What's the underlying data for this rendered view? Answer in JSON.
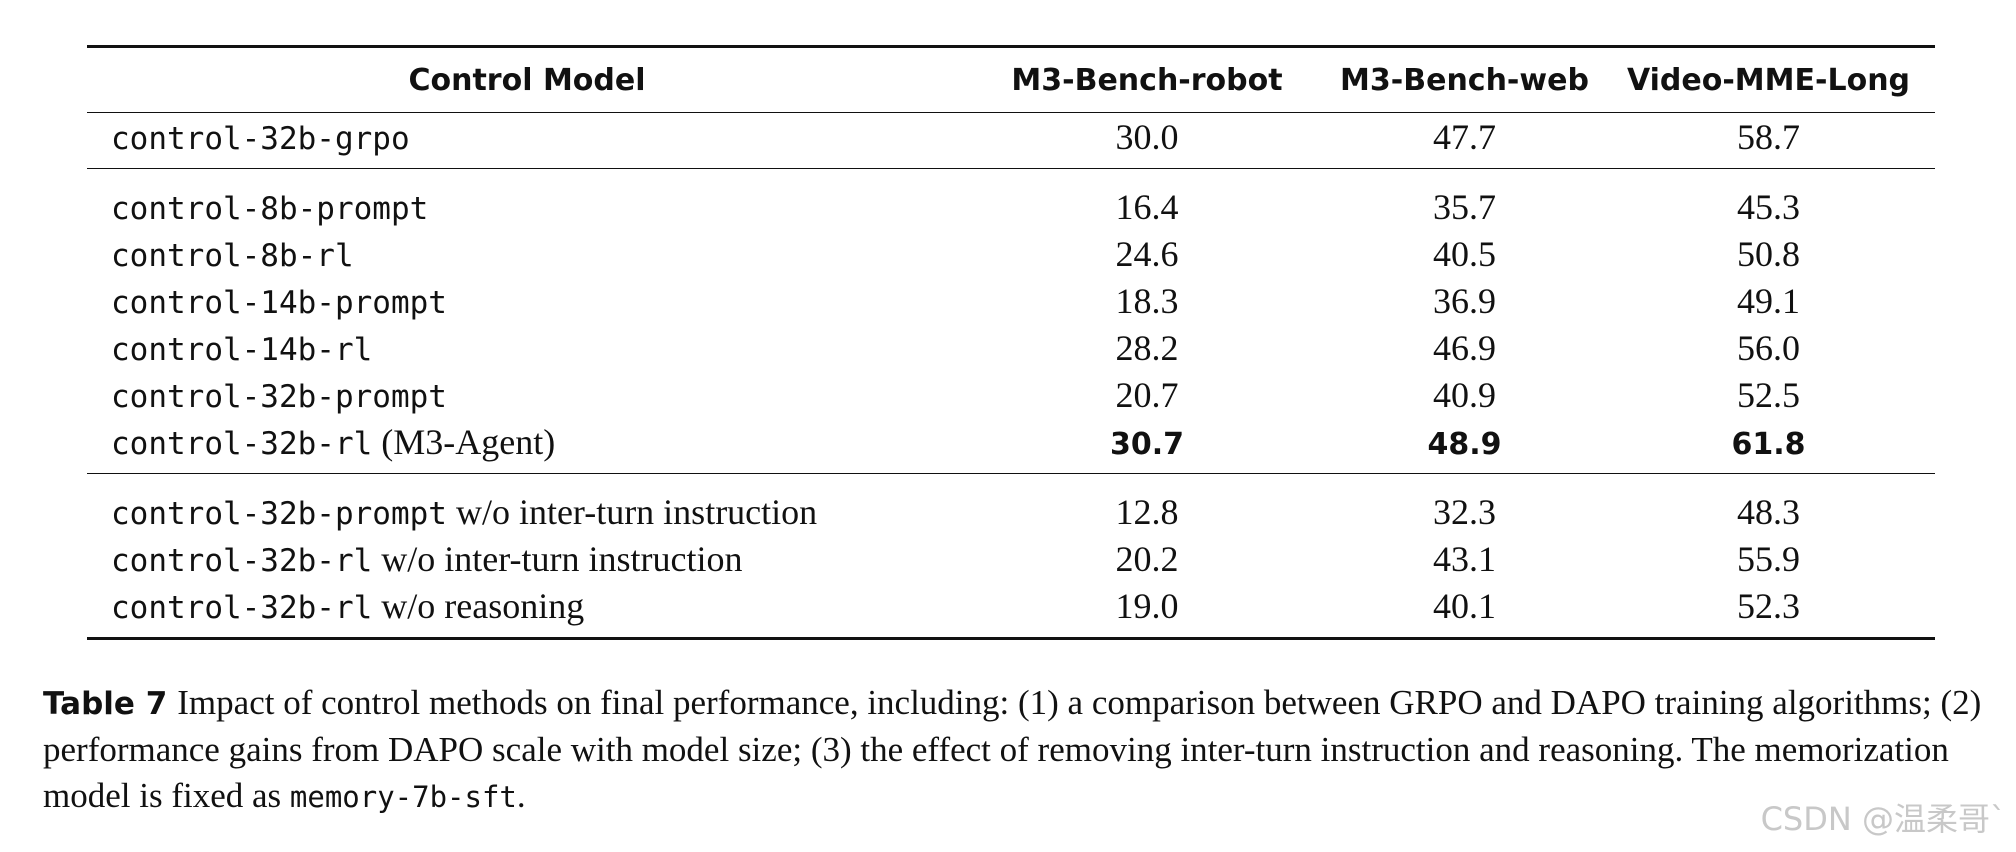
{
  "table": {
    "headers": [
      "Control Model",
      "M3-Bench-robot",
      "M3-Bench-web",
      "Video-MME-Long"
    ],
    "groups": [
      {
        "rows": [
          {
            "model": "control-32b-grpo",
            "suffix": "",
            "values": [
              "30.0",
              "47.7",
              "58.7"
            ],
            "bold": false
          }
        ]
      },
      {
        "rows": [
          {
            "model": "control-8b-prompt",
            "suffix": "",
            "values": [
              "16.4",
              "35.7",
              "45.3"
            ],
            "bold": false
          },
          {
            "model": "control-8b-rl",
            "suffix": "",
            "values": [
              "24.6",
              "40.5",
              "50.8"
            ],
            "bold": false
          },
          {
            "model": "control-14b-prompt",
            "suffix": "",
            "values": [
              "18.3",
              "36.9",
              "49.1"
            ],
            "bold": false
          },
          {
            "model": "control-14b-rl",
            "suffix": "",
            "values": [
              "28.2",
              "46.9",
              "56.0"
            ],
            "bold": false
          },
          {
            "model": "control-32b-prompt",
            "suffix": "",
            "values": [
              "20.7",
              "40.9",
              "52.5"
            ],
            "bold": false
          },
          {
            "model": "control-32b-rl",
            "suffix": "(M3-Agent)",
            "values": [
              "30.7",
              "48.9",
              "61.8"
            ],
            "bold": true
          }
        ]
      },
      {
        "rows": [
          {
            "model": "control-32b-prompt",
            "suffix": "w/o inter-turn instruction",
            "values": [
              "12.8",
              "32.3",
              "48.3"
            ],
            "bold": false
          },
          {
            "model": "control-32b-rl",
            "suffix": "w/o inter-turn instruction",
            "values": [
              "20.2",
              "43.1",
              "55.9"
            ],
            "bold": false
          },
          {
            "model": "control-32b-rl",
            "suffix": "w/o reasoning",
            "values": [
              "19.0",
              "40.1",
              "52.3"
            ],
            "bold": false
          }
        ]
      }
    ]
  },
  "caption": {
    "label": "Table 7",
    "text": "Impact of control methods on final performance, including: (1) a comparison between GRPO and DAPO training algorithms; (2) performance gains from DAPO scale with model size; (3) the effect of removing inter-turn instruction and reasoning. The memorization model is fixed as",
    "code": "memory-7b-sft",
    "end": "."
  },
  "watermark": "CSDN @温柔哥`"
}
